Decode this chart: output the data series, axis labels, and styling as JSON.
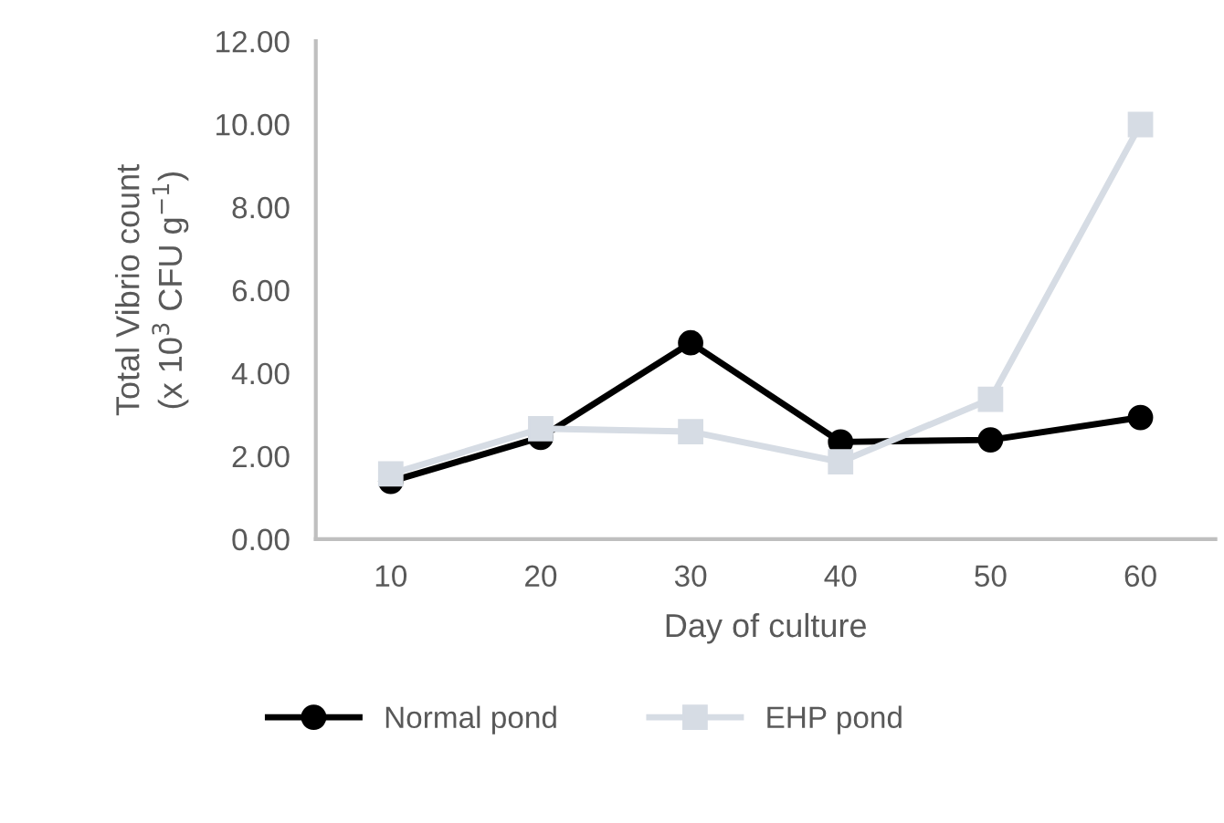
{
  "chart_data": {
    "type": "line",
    "xlabel": "Day of culture",
    "ylabel": "Total Vibrio count\n(x 10$^{3}$ CFU g$^{−1}$)",
    "categories": [
      "10",
      "20",
      "30",
      "40",
      "50",
      "60"
    ],
    "series": [
      {
        "name": "Normal pond",
        "color": "#000000",
        "marker": "circle",
        "values": [
          1.39,
          2.45,
          4.73,
          2.34,
          2.39,
          2.93
        ]
      },
      {
        "name": "EHP pond",
        "color": "#d6dce4",
        "marker": "square",
        "values": [
          1.57,
          2.66,
          2.59,
          1.86,
          3.37,
          9.99
        ]
      }
    ],
    "ylim": [
      0,
      12
    ],
    "yticks": [
      {
        "value": 0,
        "label": "0.00"
      },
      {
        "value": 2,
        "label": "2.00"
      },
      {
        "value": 4,
        "label": "4.00"
      },
      {
        "value": 6,
        "label": "6.00"
      },
      {
        "value": 8,
        "label": "8.00"
      },
      {
        "value": 10,
        "label": "10.00"
      },
      {
        "value": 12,
        "label": "12.00"
      }
    ],
    "grid": false,
    "legend": "bottom",
    "line_style": "solid"
  }
}
